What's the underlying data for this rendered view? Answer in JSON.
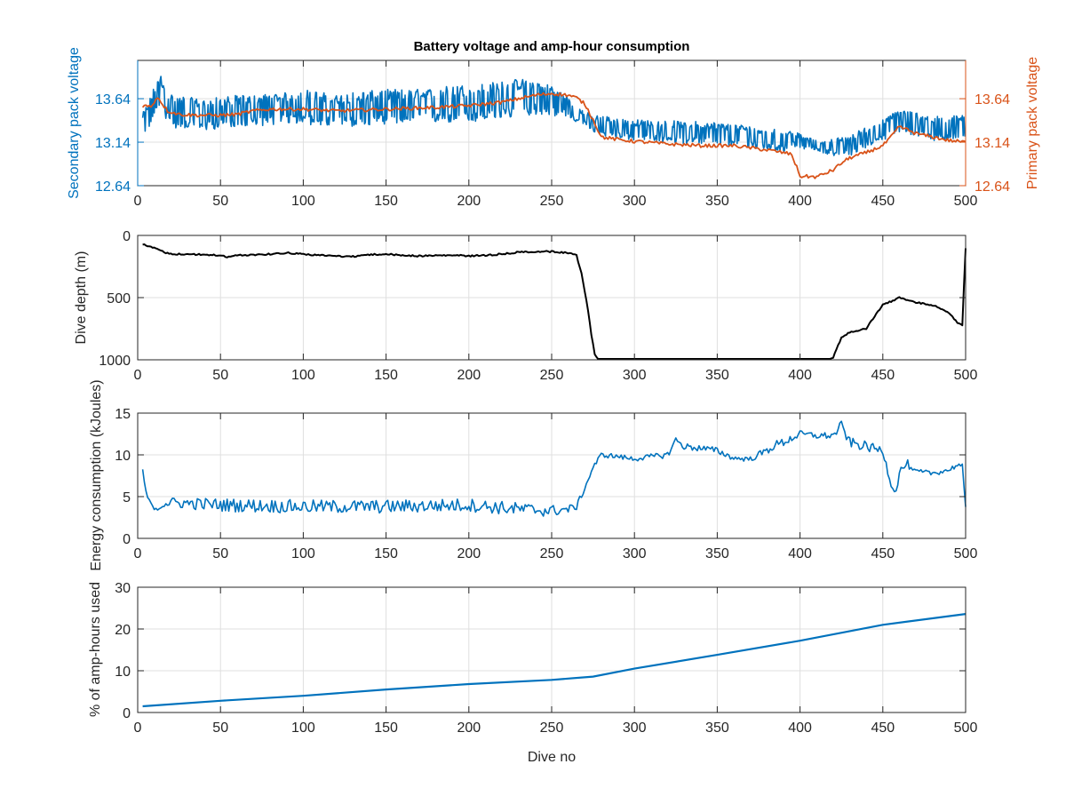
{
  "figure": {
    "title": "Battery voltage and amp-hour consumption",
    "xlabel": "Dive no"
  },
  "colors": {
    "secondary": "#0072BD",
    "primary": "#D95319",
    "depth": "#000000",
    "energy": "#0072BD",
    "amphours": "#0072BD",
    "axis": "#262626",
    "grid": "#dfdfdf"
  },
  "chart_data": [
    {
      "id": "voltage",
      "type": "line",
      "title": "Battery voltage and amp-hour consumption",
      "xlim": [
        0,
        500
      ],
      "xticks": [
        0,
        50,
        100,
        150,
        200,
        250,
        300,
        350,
        400,
        450,
        500
      ],
      "y_left": {
        "label": "Secondary pack voltage",
        "ylim": [
          12.64,
          14.08
        ],
        "ticks": [
          12.64,
          13.14,
          13.64
        ]
      },
      "y_right": {
        "label": "Primary pack voltage",
        "ylim": [
          12.64,
          14.08
        ],
        "ticks": [
          12.64,
          13.14,
          13.64
        ]
      },
      "grid": true,
      "series": [
        {
          "axis": "left",
          "x": [
            3,
            8,
            13,
            20,
            30,
            40,
            50,
            60,
            70,
            80,
            90,
            100,
            110,
            120,
            130,
            140,
            150,
            160,
            170,
            180,
            190,
            200,
            210,
            220,
            230,
            240,
            250,
            260,
            265,
            270,
            275,
            280,
            290,
            300,
            310,
            320,
            330,
            340,
            350,
            360,
            370,
            380,
            390,
            395,
            400,
            410,
            420,
            430,
            440,
            450,
            460,
            470,
            480,
            490,
            500
          ],
          "y": [
            13.35,
            13.5,
            13.75,
            13.5,
            13.48,
            13.45,
            13.48,
            13.5,
            13.5,
            13.52,
            13.53,
            13.55,
            13.52,
            13.5,
            13.52,
            13.53,
            13.55,
            13.55,
            13.55,
            13.56,
            13.58,
            13.58,
            13.6,
            13.62,
            13.65,
            13.66,
            13.62,
            13.55,
            13.45,
            13.42,
            13.35,
            13.33,
            13.3,
            13.28,
            13.27,
            13.26,
            13.25,
            13.25,
            13.24,
            13.22,
            13.2,
            13.18,
            13.15,
            13.2,
            13.15,
            13.1,
            13.08,
            13.1,
            13.2,
            13.28,
            13.38,
            13.35,
            13.3,
            13.3,
            13.32
          ],
          "amplitude": [
            0.12,
            0.18,
            0.2,
            0.2,
            0.18,
            0.18,
            0.18,
            0.18,
            0.18,
            0.18,
            0.18,
            0.2,
            0.2,
            0.18,
            0.2,
            0.2,
            0.2,
            0.2,
            0.2,
            0.2,
            0.22,
            0.22,
            0.22,
            0.22,
            0.22,
            0.2,
            0.18,
            0.12,
            0.08,
            0.08,
            0.1,
            0.12,
            0.12,
            0.12,
            0.12,
            0.13,
            0.13,
            0.13,
            0.13,
            0.13,
            0.13,
            0.13,
            0.13,
            0.1,
            0.08,
            0.06,
            0.1,
            0.12,
            0.12,
            0.12,
            0.14,
            0.14,
            0.14,
            0.14,
            0.14
          ]
        },
        {
          "axis": "right",
          "x": [
            3,
            8,
            12,
            18,
            25,
            35,
            50,
            60,
            70,
            80,
            100,
            120,
            150,
            180,
            200,
            220,
            240,
            250,
            260,
            265,
            270,
            275,
            280,
            290,
            300,
            320,
            340,
            360,
            380,
            390,
            395,
            398,
            400,
            410,
            415,
            420,
            425,
            430,
            440,
            450,
            455,
            460,
            465,
            470,
            480,
            490,
            500
          ],
          "y": [
            13.56,
            13.55,
            13.66,
            13.5,
            13.46,
            13.45,
            13.45,
            13.46,
            13.5,
            13.52,
            13.52,
            13.5,
            13.52,
            13.54,
            13.56,
            13.6,
            13.68,
            13.7,
            13.68,
            13.65,
            13.58,
            13.4,
            13.2,
            13.17,
            13.15,
            13.12,
            13.1,
            13.1,
            13.05,
            13.02,
            13.0,
            12.85,
            12.75,
            12.74,
            12.78,
            12.82,
            12.9,
            12.96,
            13.02,
            13.1,
            13.2,
            13.32,
            13.28,
            13.24,
            13.2,
            13.16,
            13.14
          ],
          "amplitude": 0.02
        }
      ]
    },
    {
      "id": "depth",
      "type": "line",
      "xlim": [
        0,
        500
      ],
      "xticks": [
        0,
        50,
        100,
        150,
        200,
        250,
        300,
        350,
        400,
        450,
        500
      ],
      "ylabel": "Dive depth (m)",
      "ylim": [
        0,
        1000
      ],
      "y_reversed": true,
      "yticks": [
        0,
        500,
        1000
      ],
      "grid": true,
      "series": [
        {
          "x": [
            3,
            6,
            10,
            15,
            20,
            30,
            40,
            50,
            55,
            60,
            70,
            80,
            90,
            100,
            110,
            120,
            130,
            135,
            140,
            150,
            160,
            170,
            180,
            190,
            200,
            210,
            220,
            230,
            240,
            250,
            260,
            265,
            268,
            270,
            272,
            274,
            276,
            278,
            280,
            290,
            300,
            320,
            350,
            380,
            400,
            410,
            418,
            420,
            425,
            430,
            440,
            445,
            450,
            455,
            460,
            470,
            480,
            490,
            495,
            498,
            500
          ],
          "y": [
            70,
            90,
            100,
            130,
            150,
            150,
            155,
            160,
            175,
            160,
            155,
            150,
            140,
            150,
            160,
            165,
            170,
            160,
            155,
            150,
            160,
            165,
            162,
            160,
            165,
            160,
            150,
            135,
            130,
            130,
            140,
            160,
            300,
            450,
            600,
            800,
            950,
            1000,
            1000,
            1000,
            1000,
            1000,
            1005,
            1000,
            1000,
            1005,
            1000,
            980,
            820,
            780,
            750,
            650,
            560,
            530,
            500,
            540,
            560,
            620,
            700,
            720,
            100
          ],
          "noise": 6
        }
      ]
    },
    {
      "id": "energy",
      "type": "line",
      "xlim": [
        0,
        500
      ],
      "xticks": [
        0,
        50,
        100,
        150,
        200,
        250,
        300,
        350,
        400,
        450,
        500
      ],
      "ylabel": "Energy consumption (kJoules)",
      "ylim": [
        0,
        15
      ],
      "yticks": [
        0,
        5,
        10,
        15
      ],
      "grid": true,
      "series": [
        {
          "x": [
            3,
            5,
            8,
            12,
            15,
            20,
            30,
            50,
            100,
            150,
            200,
            230,
            250,
            260,
            265,
            270,
            275,
            280,
            290,
            300,
            310,
            320,
            325,
            330,
            340,
            350,
            360,
            370,
            380,
            385,
            390,
            395,
            400,
            410,
            420,
            425,
            430,
            440,
            450,
            455,
            458,
            460,
            465,
            467,
            470,
            480,
            490,
            495,
            498,
            500
          ],
          "y": [
            8,
            5.5,
            4,
            3.5,
            4.1,
            4.3,
            4.2,
            4.0,
            3.8,
            3.8,
            4.0,
            3.5,
            3.3,
            3.5,
            3.8,
            6.0,
            8.5,
            10.0,
            9.8,
            9.5,
            9.8,
            10.0,
            11.8,
            11.0,
            10.8,
            10.5,
            9.6,
            9.5,
            10.5,
            11.2,
            11.5,
            12.0,
            12.5,
            12.3,
            12.3,
            13.5,
            11.5,
            11.0,
            10.5,
            6.5,
            5.5,
            8.0,
            9.0,
            8.2,
            8.0,
            7.8,
            8.2,
            8.8,
            8.6,
            3.5
          ],
          "amplitude": [
            0.3,
            0.3,
            0.3,
            0.3,
            0.5,
            0.6,
            0.7,
            0.8,
            0.8,
            0.8,
            0.8,
            0.8,
            0.7,
            0.5,
            0.4,
            0.3,
            0.3,
            0.3,
            0.3,
            0.3,
            0.3,
            0.4,
            0.4,
            0.4,
            0.4,
            0.4,
            0.3,
            0.3,
            0.5,
            0.5,
            0.5,
            0.5,
            0.4,
            0.4,
            0.4,
            0.6,
            0.6,
            0.6,
            0.5,
            0.4,
            0.4,
            0.4,
            0.4,
            0.3,
            0.3,
            0.3,
            0.3,
            0.3,
            0.3,
            0.3
          ]
        }
      ]
    },
    {
      "id": "amphours",
      "type": "line",
      "xlim": [
        0,
        500
      ],
      "xticks": [
        0,
        50,
        100,
        150,
        200,
        250,
        300,
        350,
        400,
        450,
        500
      ],
      "xlabel": "Dive no",
      "ylabel": "% of amp-hours used",
      "ylim": [
        0,
        30
      ],
      "yticks": [
        0,
        10,
        20,
        30
      ],
      "grid": true,
      "series": [
        {
          "x": [
            3,
            50,
            100,
            150,
            200,
            250,
            275,
            300,
            350,
            400,
            450,
            500
          ],
          "y": [
            1.5,
            2.8,
            4.0,
            5.5,
            6.8,
            7.8,
            8.6,
            10.5,
            13.8,
            17.2,
            21.0,
            23.6
          ]
        }
      ]
    }
  ]
}
